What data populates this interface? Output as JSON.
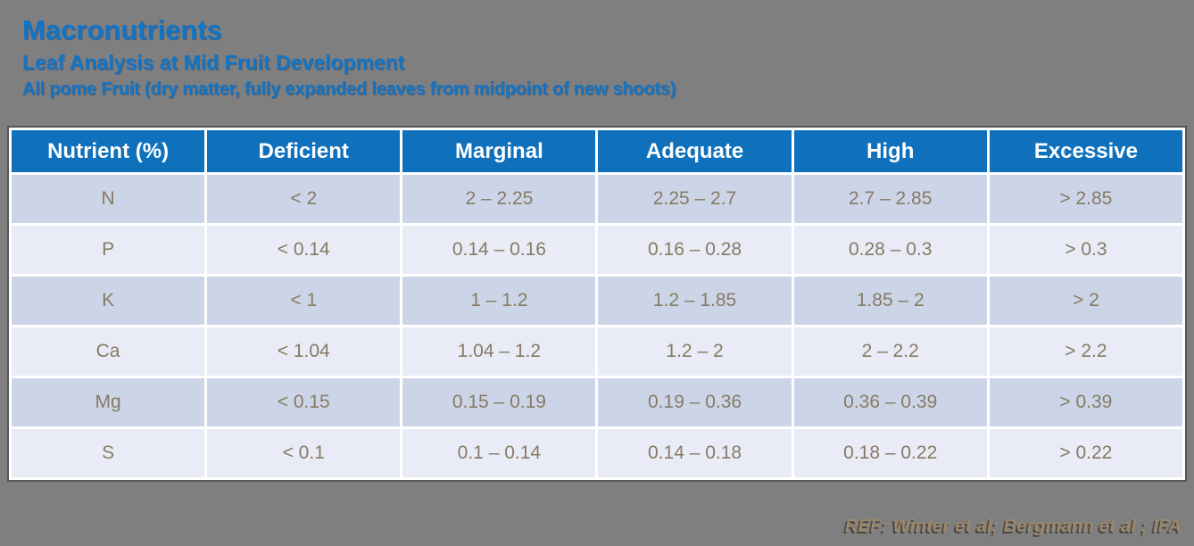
{
  "slide": {
    "title": "Macronutrients",
    "subtitle": "Leaf Analysis at Mid Fruit Development",
    "subnote": "All pome Fruit (dry matter, fully expanded leaves from midpoint of new shoots)",
    "reference": "REF: Winter et al; Bergmann et al ; IFA"
  },
  "colors": {
    "background": "#7f7f7f",
    "title_blue": "#1274c5",
    "header_bg": "#0f71bc",
    "header_text": "#ffffff",
    "row_odd": "#ccd5e7",
    "row_even": "#e9ecf6",
    "cell_text": "#877a64",
    "reference_text": "#9c8769"
  },
  "table": {
    "columns": [
      "Nutrient (%)",
      "Deficient",
      "Marginal",
      "Adequate",
      "High",
      "Excessive"
    ],
    "rows": [
      {
        "cells": [
          "N",
          "< 2",
          "2 – 2.25",
          "2.25 – 2.7",
          "2.7 – 2.85",
          "> 2.85"
        ]
      },
      {
        "cells": [
          "P",
          "< 0.14",
          "0.14 – 0.16",
          "0.16 – 0.28",
          "0.28 – 0.3",
          "> 0.3"
        ]
      },
      {
        "cells": [
          "K",
          "< 1",
          "1 – 1.2",
          "1.2 – 1.85",
          "1.85 – 2",
          "> 2"
        ]
      },
      {
        "cells": [
          "Ca",
          "< 1.04",
          "1.04 – 1.2",
          "1.2 – 2",
          "2 – 2.2",
          "> 2.2"
        ]
      },
      {
        "cells": [
          "Mg",
          "< 0.15",
          "0.15 – 0.19",
          "0.19 – 0.36",
          "0.36 – 0.39",
          "> 0.39"
        ]
      },
      {
        "cells": [
          "S",
          "< 0.1",
          "0.1 – 0.14",
          "0.14 – 0.18",
          "0.18 – 0.22",
          "> 0.22"
        ]
      }
    ]
  }
}
